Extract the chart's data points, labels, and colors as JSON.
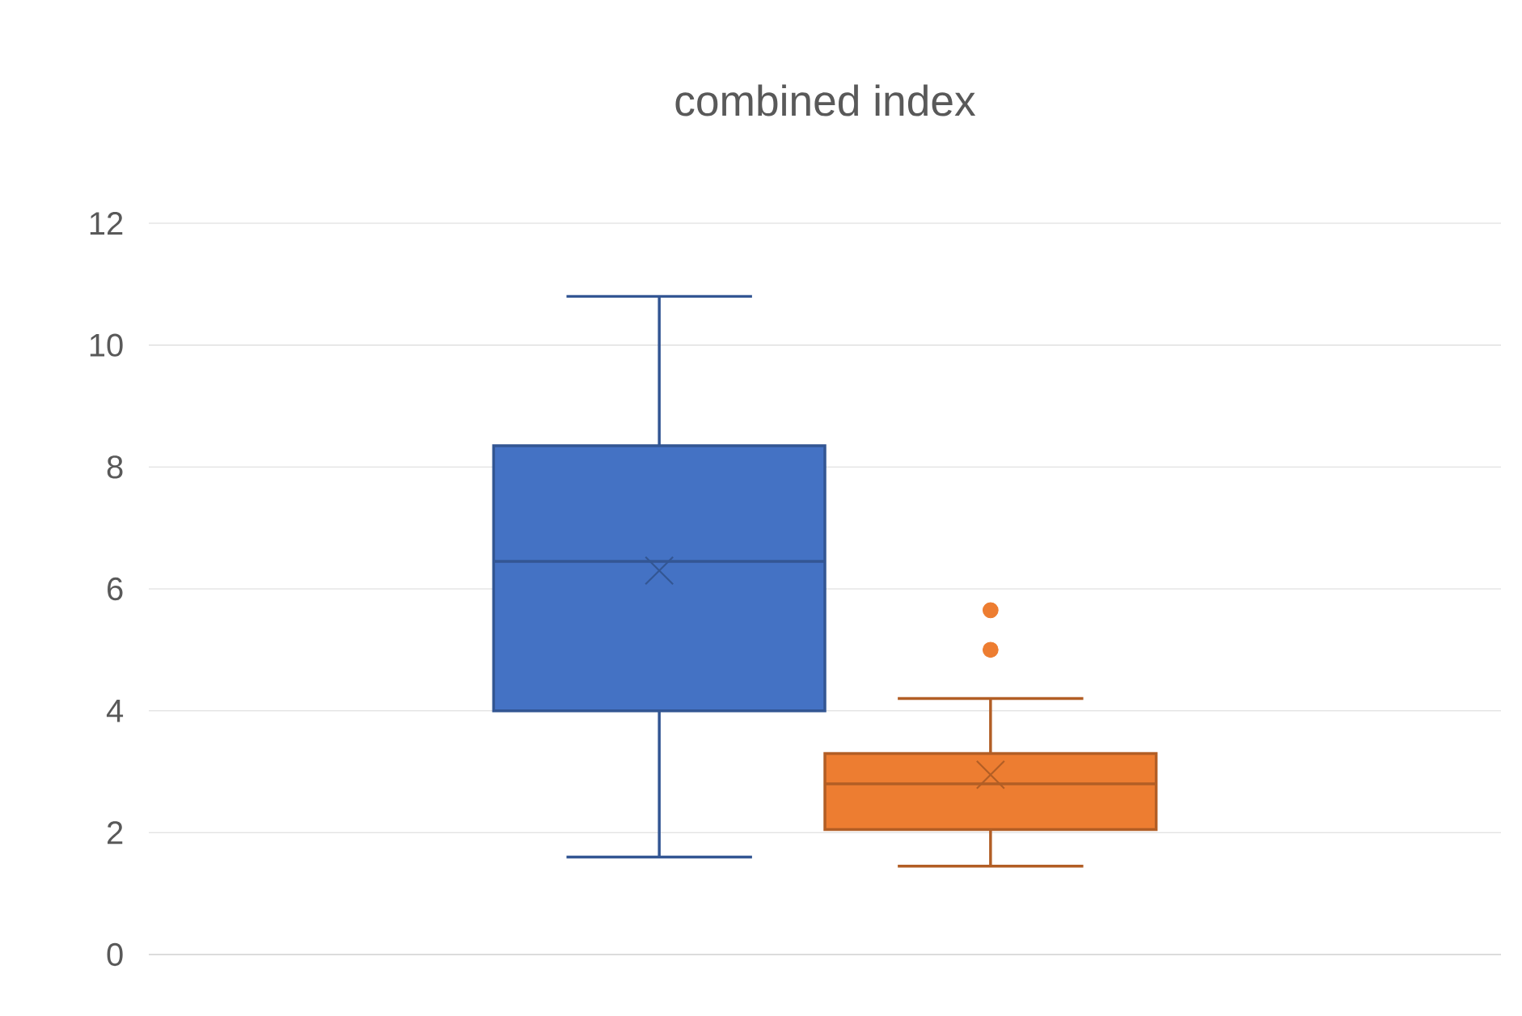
{
  "chart_data": {
    "type": "box",
    "title": "combined index",
    "categories": [
      null
    ],
    "ylim": [
      0,
      12
    ],
    "yticks": [
      0,
      2,
      4,
      6,
      8,
      10,
      12
    ],
    "grid": "y",
    "series": [
      {
        "color": "#4472c4",
        "boxes": [
          {
            "low": 1.6,
            "q1": 4.0,
            "median": 6.45,
            "q3": 8.35,
            "high": 10.8,
            "mean": 6.3
          }
        ]
      },
      {
        "color": "#ed7d31",
        "boxes": [
          {
            "low": 1.45,
            "q1": 2.05,
            "median": 2.8,
            "q3": 3.3,
            "high": 4.2,
            "mean": 2.95,
            "outliers": [
              5.65,
              5.0
            ]
          }
        ]
      }
    ]
  }
}
